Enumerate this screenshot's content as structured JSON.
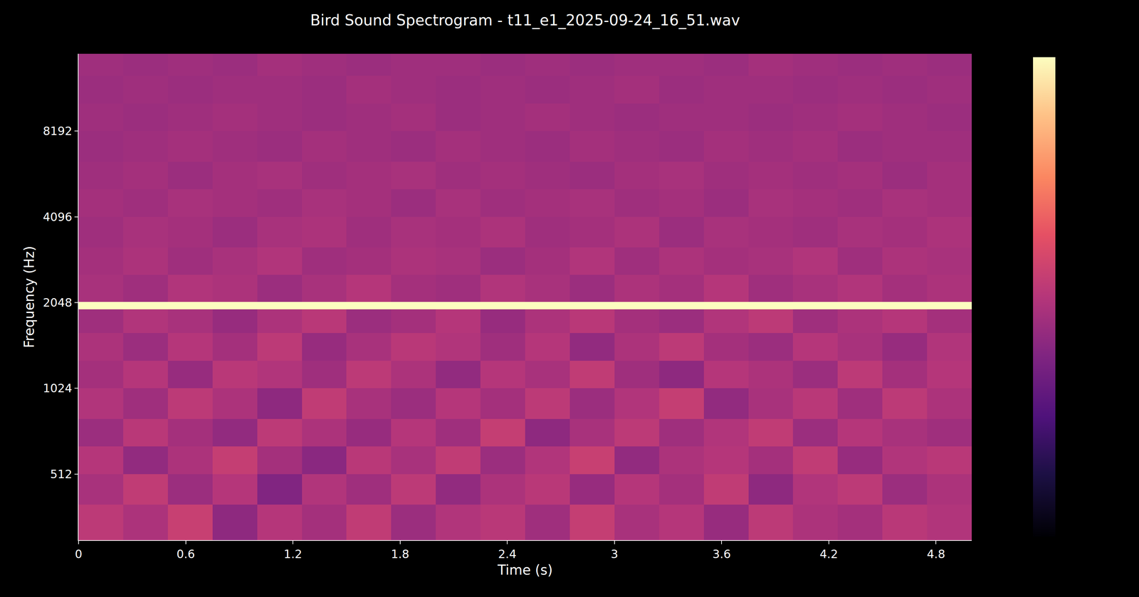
{
  "chart_data": {
    "type": "heatmap",
    "title": "Bird Sound Spectrogram - t11_e1_2025-09-24_16_51.wav",
    "x_label": "Time (s)",
    "y_label": "Frequency (Hz)",
    "log": "y",
    "grid": false,
    "xlim": [
      0,
      5
    ],
    "xticks": [
      0,
      0.6,
      1.2,
      1.8,
      2.4,
      3,
      3.6,
      4.2,
      4.8
    ],
    "ylim": [
      300,
      15300
    ],
    "yticks": [
      512,
      1024,
      2048,
      4096,
      8192
    ],
    "colorbar_range": [
      0,
      100
    ],
    "x": [
      0,
      0.25,
      0.5,
      0.75,
      1,
      1.25,
      1.5,
      1.75,
      2,
      2.25,
      2.5,
      2.75,
      3,
      3.25,
      3.5,
      3.75,
      4,
      4.25,
      4.5,
      4.75,
      5
    ],
    "y": [
      300,
      400,
      512,
      640,
      800,
      1024,
      1280,
      1600,
      1940,
      2060,
      2560,
      3200,
      4096,
      5120,
      6400,
      8192,
      10240,
      12800,
      15300
    ],
    "cells": [
      [
        52,
        48,
        55,
        41,
        50,
        46,
        53,
        44,
        49,
        51,
        45,
        54,
        47,
        50,
        43,
        52,
        48,
        46,
        51,
        49
      ],
      [
        47,
        53,
        44,
        50,
        38,
        49,
        45,
        52,
        42,
        48,
        51,
        43,
        50,
        46,
        53,
        41,
        49,
        52,
        44,
        48
      ],
      [
        50,
        42,
        48,
        54,
        46,
        40,
        51,
        47,
        53,
        44,
        49,
        55,
        42,
        48,
        50,
        46,
        53,
        43,
        49,
        51
      ],
      [
        44,
        51,
        46,
        42,
        52,
        48,
        43,
        50,
        45,
        54,
        41,
        47,
        52,
        45,
        49,
        53,
        44,
        50,
        47,
        45
      ],
      [
        49,
        45,
        52,
        48,
        41,
        53,
        47,
        44,
        50,
        46,
        52,
        44,
        49,
        54,
        42,
        47,
        51,
        45,
        52,
        48
      ],
      [
        46,
        50,
        43,
        51,
        49,
        45,
        52,
        48,
        42,
        50,
        47,
        53,
        45,
        41,
        50,
        48,
        44,
        52,
        46,
        50
      ],
      [
        48,
        44,
        50,
        46,
        52,
        43,
        47,
        51,
        49,
        45,
        50,
        42,
        48,
        52,
        46,
        44,
        50,
        47,
        43,
        49
      ],
      [
        45,
        49,
        47,
        43,
        48,
        51,
        44,
        46,
        50,
        43,
        48,
        51,
        46,
        44,
        49,
        52,
        45,
        48,
        50,
        46
      ],
      [
        100,
        100,
        100,
        100,
        100,
        100,
        100,
        100,
        100,
        100,
        100,
        100,
        100,
        100,
        100,
        100,
        100,
        100,
        100,
        100
      ],
      [
        47,
        45,
        49,
        48,
        44,
        47,
        50,
        46,
        45,
        49,
        47,
        44,
        48,
        46,
        50,
        45,
        47,
        49,
        46,
        48
      ],
      [
        46,
        48,
        45,
        47,
        49,
        45,
        46,
        48,
        47,
        44,
        46,
        49,
        45,
        48,
        46,
        47,
        49,
        45,
        48,
        47
      ],
      [
        45,
        47,
        46,
        44,
        47,
        48,
        45,
        47,
        46,
        48,
        45,
        46,
        48,
        44,
        47,
        46,
        45,
        47,
        46,
        48
      ],
      [
        46,
        45,
        47,
        46,
        45,
        47,
        46,
        44,
        47,
        45,
        46,
        47,
        45,
        46,
        44,
        47,
        46,
        45,
        47,
        46
      ],
      [
        45,
        46,
        44,
        46,
        47,
        45,
        46,
        47,
        45,
        46,
        45,
        44,
        46,
        47,
        45,
        46,
        45,
        46,
        44,
        46
      ],
      [
        44,
        45,
        46,
        45,
        44,
        46,
        45,
        44,
        46,
        45,
        44,
        46,
        45,
        44,
        46,
        45,
        46,
        44,
        45,
        45
      ],
      [
        45,
        44,
        45,
        46,
        45,
        44,
        45,
        46,
        44,
        45,
        46,
        45,
        44,
        45,
        45,
        44,
        45,
        46,
        45,
        44
      ],
      [
        44,
        45,
        44,
        45,
        45,
        44,
        46,
        45,
        44,
        45,
        44,
        45,
        46,
        44,
        45,
        45,
        44,
        45,
        44,
        45
      ],
      [
        45,
        44,
        45,
        44,
        46,
        45,
        44,
        45,
        45,
        44,
        45,
        44,
        45,
        45,
        44,
        46,
        45,
        44,
        45,
        44
      ]
    ]
  }
}
